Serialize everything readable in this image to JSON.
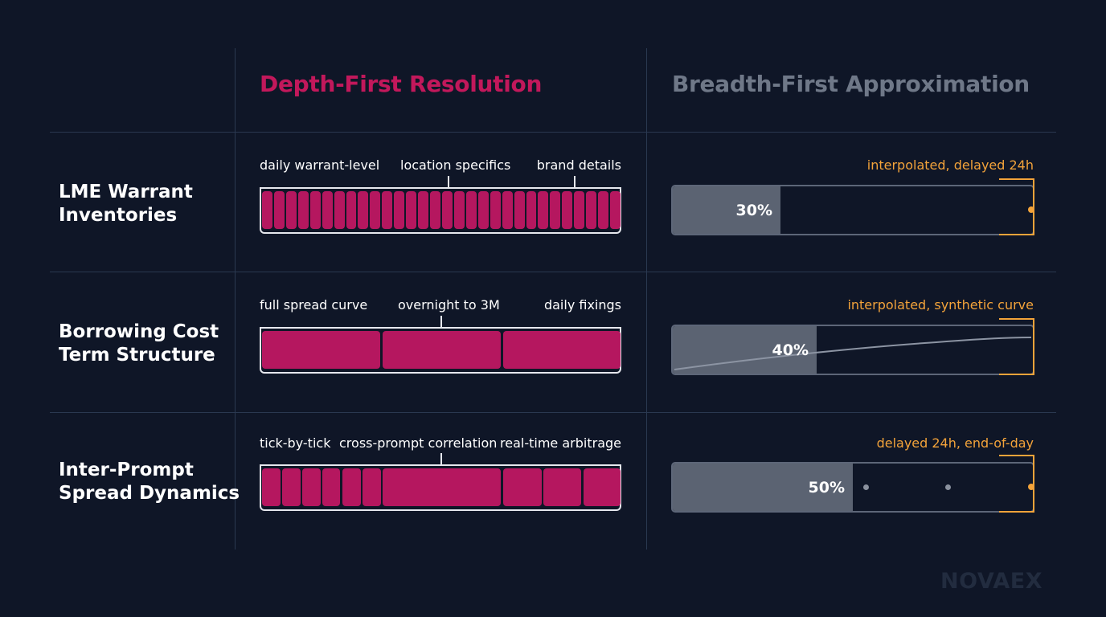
{
  "columns": {
    "depth_title": "Depth-First Resolution",
    "breadth_title": "Breadth-First Approximation"
  },
  "colors": {
    "depth_accent": "#c2185b",
    "breadth_title": "#6f7888",
    "breadth_note": "#f3a33a",
    "background": "#0f1627"
  },
  "rows": [
    {
      "label_line1": "LME Warrant",
      "label_line2": "Inventories",
      "depth_labels": [
        "daily warrant-level",
        "location specifics",
        "brand details"
      ],
      "depth_segments": 30,
      "breadth_note": "interpolated, delayed 24h",
      "breadth_percent_text": "30%",
      "breadth_percent": 30
    },
    {
      "label_line1": "Borrowing Cost",
      "label_line2": "Term Structure",
      "depth_labels": [
        "full spread curve",
        "overnight to 3M",
        "daily fixings"
      ],
      "depth_segments": 3,
      "breadth_note": "interpolated, synthetic curve",
      "breadth_percent_text": "40%",
      "breadth_percent": 40
    },
    {
      "label_line1": "Inter-Prompt",
      "label_line2": "Spread Dynamics",
      "depth_labels": [
        "tick-by-tick",
        "cross-prompt correlation",
        "real-time arbitrage"
      ],
      "depth_segments": 9,
      "breadth_note": "delayed 24h, end-of-day",
      "breadth_percent_text": "50%",
      "breadth_percent": 50
    }
  ],
  "logo": "NOVAEX"
}
